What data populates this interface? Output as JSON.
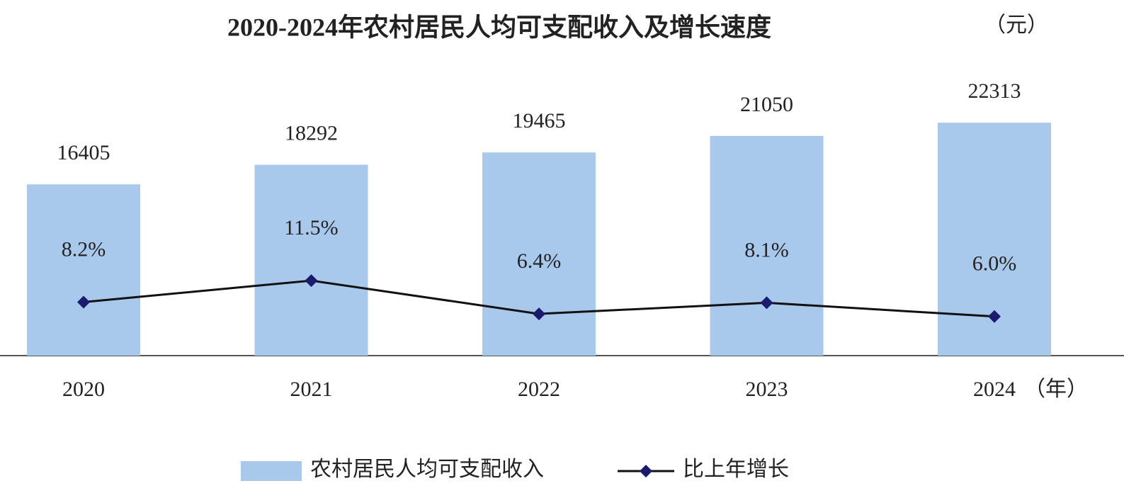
{
  "chart_data": {
    "type": "bar-line",
    "title": "2020-2024年农村居民人均可支配收入及增长速度",
    "y_unit": "（元）",
    "x_unit": "（年）",
    "categories": [
      "2020",
      "2021",
      "2022",
      "2023",
      "2024"
    ],
    "series": [
      {
        "name": "农村居民人均可支配收入",
        "type": "bar",
        "color": "#a9c9ec",
        "values": [
          16405,
          18292,
          19465,
          21050,
          22313
        ]
      },
      {
        "name": "比上年增长",
        "type": "line",
        "axis": "y2",
        "color": "#1a1a6e",
        "values": [
          8.2,
          11.5,
          6.4,
          8.1,
          6.0
        ],
        "value_labels": [
          "8.2%",
          "11.5%",
          "6.4%",
          "8.1%",
          "6.0%"
        ]
      }
    ],
    "ylim": [
      0,
      30000
    ],
    "y2lim": [
      0,
      48
    ],
    "legend": "bottom"
  }
}
